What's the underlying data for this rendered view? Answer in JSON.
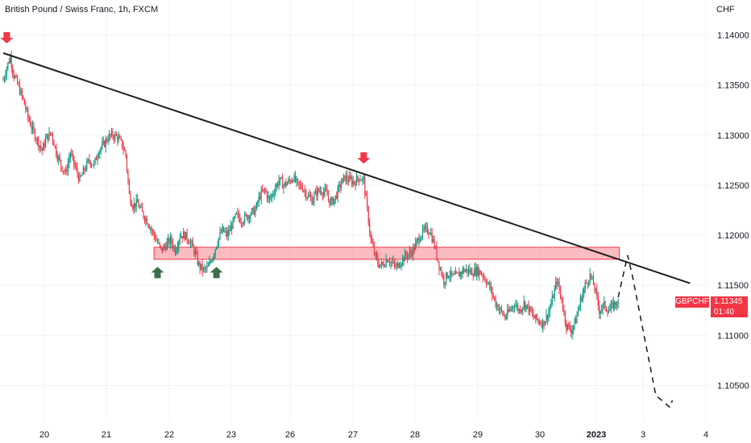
{
  "header": {
    "title": "British Pound / Swiss Franc, 1h, FXCM",
    "currency": "CHF"
  },
  "price_badge": {
    "symbol": "GBPCHF",
    "price": "1.11345",
    "countdown": "01:40"
  },
  "colors": {
    "up": "#089981",
    "down": "#f23645",
    "trendline": "#1e1e1e",
    "zone_fill": "#f2364555",
    "zone_stroke": "#f23645",
    "buy_arrow": "#3d6e4a",
    "sell_arrow": "#f23645"
  },
  "chart_data": {
    "type": "candlestick",
    "symbol": "GBPCHF",
    "timeframe": "1h",
    "y_ticks": [
      "1.14000",
      "1.13500",
      "1.13000",
      "1.12500",
      "1.12000",
      "1.11500",
      "1.11000",
      "1.10500"
    ],
    "x_ticks": [
      {
        "label": "20",
        "bold": false
      },
      {
        "label": "21",
        "bold": false
      },
      {
        "label": "22",
        "bold": false
      },
      {
        "label": "23",
        "bold": false
      },
      {
        "label": "26",
        "bold": false
      },
      {
        "label": "27",
        "bold": false
      },
      {
        "label": "28",
        "bold": false
      },
      {
        "label": "29",
        "bold": false
      },
      {
        "label": "30",
        "bold": false
      },
      {
        "label": "2023",
        "bold": true
      },
      {
        "label": "3",
        "bold": false
      },
      {
        "label": "4",
        "bold": false
      }
    ],
    "ylim": [
      1.1015,
      1.1435
    ],
    "last_price": 1.11345,
    "price_path": [
      [
        0,
        1.1355
      ],
      [
        3,
        1.1368
      ],
      [
        6,
        1.1378
      ],
      [
        9,
        1.136
      ],
      [
        13,
        1.1348
      ],
      [
        17,
        1.1335
      ],
      [
        21,
        1.1318
      ],
      [
        25,
        1.1305
      ],
      [
        29,
        1.1295
      ],
      [
        33,
        1.1285
      ],
      [
        37,
        1.1298
      ],
      [
        41,
        1.1302
      ],
      [
        45,
        1.1283
      ],
      [
        49,
        1.127
      ],
      [
        53,
        1.1262
      ],
      [
        57,
        1.1282
      ],
      [
        61,
        1.1268
      ],
      [
        65,
        1.1255
      ],
      [
        69,
        1.1266
      ],
      [
        73,
        1.1275
      ],
      [
        77,
        1.127
      ],
      [
        81,
        1.1285
      ],
      [
        85,
        1.129
      ],
      [
        89,
        1.1298
      ],
      [
        93,
        1.13
      ],
      [
        97,
        1.1298
      ],
      [
        101,
        1.129
      ],
      [
        104,
        1.128
      ],
      [
        107,
        1.124
      ],
      [
        110,
        1.123
      ],
      [
        114,
        1.1232
      ],
      [
        118,
        1.1222
      ],
      [
        122,
        1.1215
      ],
      [
        126,
        1.1205
      ],
      [
        130,
        1.1195
      ],
      [
        134,
        1.1185
      ],
      [
        138,
        1.119
      ],
      [
        142,
        1.1195
      ],
      [
        146,
        1.1185
      ],
      [
        150,
        1.12
      ],
      [
        154,
        1.12
      ],
      [
        158,
        1.1195
      ],
      [
        162,
        1.1185
      ],
      [
        166,
        1.117
      ],
      [
        170,
        1.1165
      ],
      [
        174,
        1.1168
      ],
      [
        178,
        1.118
      ],
      [
        182,
        1.1195
      ],
      [
        186,
        1.1205
      ],
      [
        190,
        1.12
      ],
      [
        194,
        1.121
      ],
      [
        198,
        1.122
      ],
      [
        202,
        1.1215
      ],
      [
        206,
        1.1218
      ],
      [
        210,
        1.1222
      ],
      [
        214,
        1.1225
      ],
      [
        218,
        1.124
      ],
      [
        222,
        1.1245
      ],
      [
        226,
        1.1235
      ],
      [
        230,
        1.1245
      ],
      [
        234,
        1.1255
      ],
      [
        238,
        1.125
      ],
      [
        242,
        1.1253
      ],
      [
        246,
        1.1258
      ],
      [
        250,
        1.125
      ],
      [
        254,
        1.1248
      ],
      [
        258,
        1.124
      ],
      [
        262,
        1.1235
      ],
      [
        266,
        1.1243
      ],
      [
        270,
        1.1245
      ],
      [
        274,
        1.1242
      ],
      [
        278,
        1.1232
      ],
      [
        282,
        1.1238
      ],
      [
        286,
        1.125
      ],
      [
        290,
        1.1258
      ],
      [
        294,
        1.1255
      ],
      [
        298,
        1.1253
      ],
      [
        302,
        1.1258
      ],
      [
        306,
        1.1255
      ],
      [
        309,
        1.1225
      ],
      [
        312,
        1.1195
      ],
      [
        315,
        1.1182
      ],
      [
        318,
        1.1172
      ],
      [
        322,
        1.117
      ],
      [
        326,
        1.1177
      ],
      [
        330,
        1.1172
      ],
      [
        334,
        1.1168
      ],
      [
        338,
        1.1175
      ],
      [
        342,
        1.118
      ],
      [
        346,
        1.1182
      ],
      [
        350,
        1.119
      ],
      [
        354,
        1.12
      ],
      [
        358,
        1.1205
      ],
      [
        362,
        1.1205
      ],
      [
        366,
        1.119
      ],
      [
        370,
        1.117
      ],
      [
        374,
        1.1155
      ],
      [
        378,
        1.1162
      ],
      [
        382,
        1.1158
      ],
      [
        386,
        1.116
      ],
      [
        390,
        1.1165
      ],
      [
        394,
        1.1165
      ],
      [
        398,
        1.1163
      ],
      [
        402,
        1.1165
      ],
      [
        406,
        1.1162
      ],
      [
        410,
        1.1155
      ],
      [
        414,
        1.1145
      ],
      [
        418,
        1.1132
      ],
      [
        422,
        1.1125
      ],
      [
        426,
        1.1118
      ],
      [
        430,
        1.1125
      ],
      [
        434,
        1.1132
      ],
      [
        438,
        1.1125
      ],
      [
        442,
        1.1132
      ],
      [
        446,
        1.1127
      ],
      [
        450,
        1.1118
      ],
      [
        454,
        1.1115
      ],
      [
        458,
        1.1112
      ],
      [
        462,
        1.112
      ],
      [
        466,
        1.1135
      ],
      [
        470,
        1.1155
      ],
      [
        474,
        1.1135
      ],
      [
        478,
        1.111
      ],
      [
        482,
        1.1105
      ],
      [
        486,
        1.1115
      ],
      [
        490,
        1.1135
      ],
      [
        494,
        1.115
      ],
      [
        498,
        1.116
      ],
      [
        502,
        1.1148
      ],
      [
        506,
        1.1125
      ],
      [
        510,
        1.113
      ],
      [
        514,
        1.1125
      ],
      [
        518,
        1.113
      ],
      [
        522,
        1.11345
      ]
    ],
    "trendline": {
      "from": [
        0,
        1.1382
      ],
      "to": [
        583,
        1.1152
      ]
    },
    "zone": {
      "from_index": 128,
      "to_index": 523,
      "top": 1.1188,
      "bottom": 1.1176
    },
    "sell_arrows": [
      {
        "index": 3,
        "price": 1.139
      },
      {
        "index": 306,
        "price": 1.127
      }
    ],
    "buy_arrows": [
      {
        "index": 131,
        "price": 1.117
      },
      {
        "index": 181,
        "price": 1.117
      }
    ],
    "projection": [
      [
        522,
        1.1138
      ],
      [
        530,
        1.118
      ],
      [
        534,
        1.116
      ],
      [
        544,
        1.11
      ],
      [
        554,
        1.104
      ],
      [
        566,
        1.1028
      ],
      [
        568,
        1.1035
      ]
    ]
  }
}
